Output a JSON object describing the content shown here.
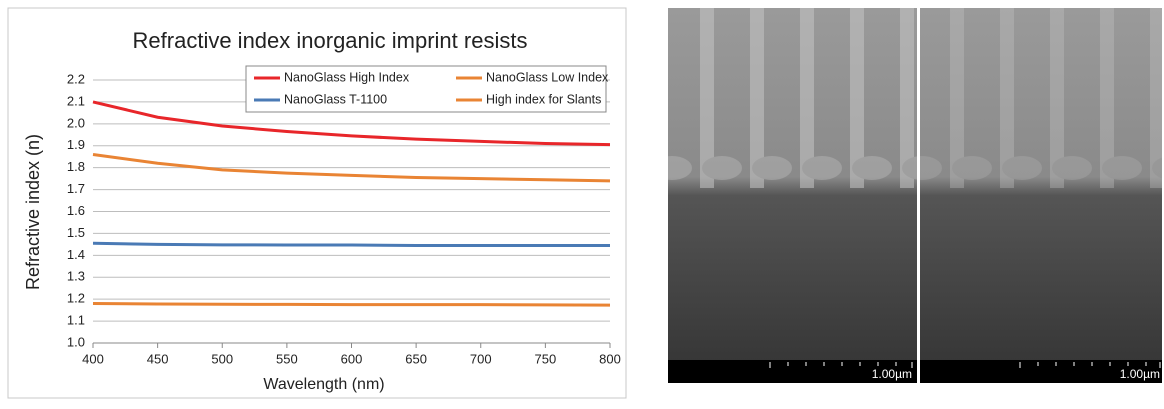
{
  "chart_data": {
    "type": "line",
    "title": "Refractive index inorganic imprint resists",
    "x_label": "Wavelength (nm)",
    "y_label": "Refractive index (n)",
    "x": [
      400,
      450,
      500,
      550,
      600,
      650,
      700,
      750,
      800
    ],
    "series": [
      {
        "name": "NanoGlass High Index",
        "color": "#e8262a",
        "values": [
          2.1,
          2.03,
          1.99,
          1.965,
          1.945,
          1.93,
          1.92,
          1.91,
          1.905
        ]
      },
      {
        "name": "NanoGlass Low Index",
        "color": "#e98434",
        "values": [
          1.86,
          1.82,
          1.79,
          1.775,
          1.765,
          1.755,
          1.75,
          1.745,
          1.74
        ]
      },
      {
        "name": "NanoGlass T-1100",
        "color": "#4a7ab5",
        "values": [
          1.455,
          1.45,
          1.448,
          1.447,
          1.447,
          1.445,
          1.445,
          1.445,
          1.445
        ]
      },
      {
        "name": "High index for Slants",
        "color": "#e98434",
        "values": [
          1.18,
          1.178,
          1.177,
          1.176,
          1.175,
          1.175,
          1.175,
          1.174,
          1.173
        ]
      }
    ],
    "xlim": [
      400,
      800
    ],
    "xticks": [
      400,
      450,
      500,
      550,
      600,
      650,
      700,
      750,
      800
    ],
    "ylim": [
      1.0,
      2.2
    ],
    "yticks": [
      {
        "value": 1.0,
        "label": "1.0"
      },
      1.1,
      1.2,
      1.3,
      1.4,
      1.5,
      1.6,
      1.7,
      1.8,
      1.9,
      {
        "value": 2.0,
        "label": "2.0"
      },
      2.1,
      2.2
    ],
    "grid": true,
    "legend": "upper right"
  },
  "images": [
    {
      "scale_label": "1.00µm"
    },
    {
      "scale_label": "1.00µm"
    }
  ]
}
